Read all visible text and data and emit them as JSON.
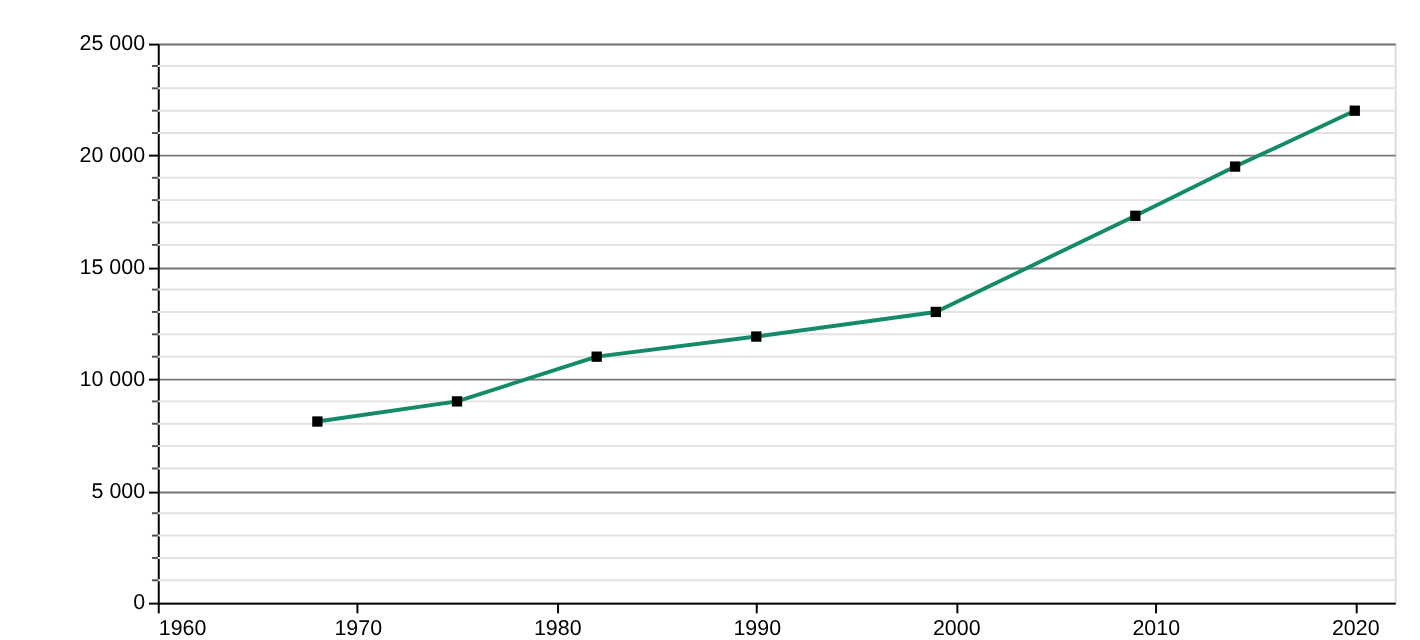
{
  "chart_data": {
    "type": "line",
    "x": [
      1968,
      1975,
      1982,
      1990,
      1999,
      2009,
      2014,
      2020
    ],
    "series": [
      {
        "color": "#138a68",
        "values": [
          8100,
          9000,
          11000,
          11900,
          13000,
          17300,
          19500,
          22000
        ]
      }
    ],
    "xlim": [
      1960,
      2022
    ],
    "xticks": [
      1960,
      1970,
      1980,
      1990,
      2000,
      2010,
      2020
    ],
    "ylim": [
      0,
      25000
    ],
    "yticks": [
      {
        "value": 0,
        "label": "0"
      },
      {
        "value": 5000,
        "label": "5 000"
      },
      {
        "value": 10000,
        "label": "10 000"
      },
      {
        "value": 15000,
        "label": "15 000"
      },
      {
        "value": 20000,
        "label": "20 000"
      },
      {
        "value": 25000,
        "label": "25 000"
      }
    ],
    "grid": "y",
    "marker": "square",
    "line_style": "solid"
  }
}
